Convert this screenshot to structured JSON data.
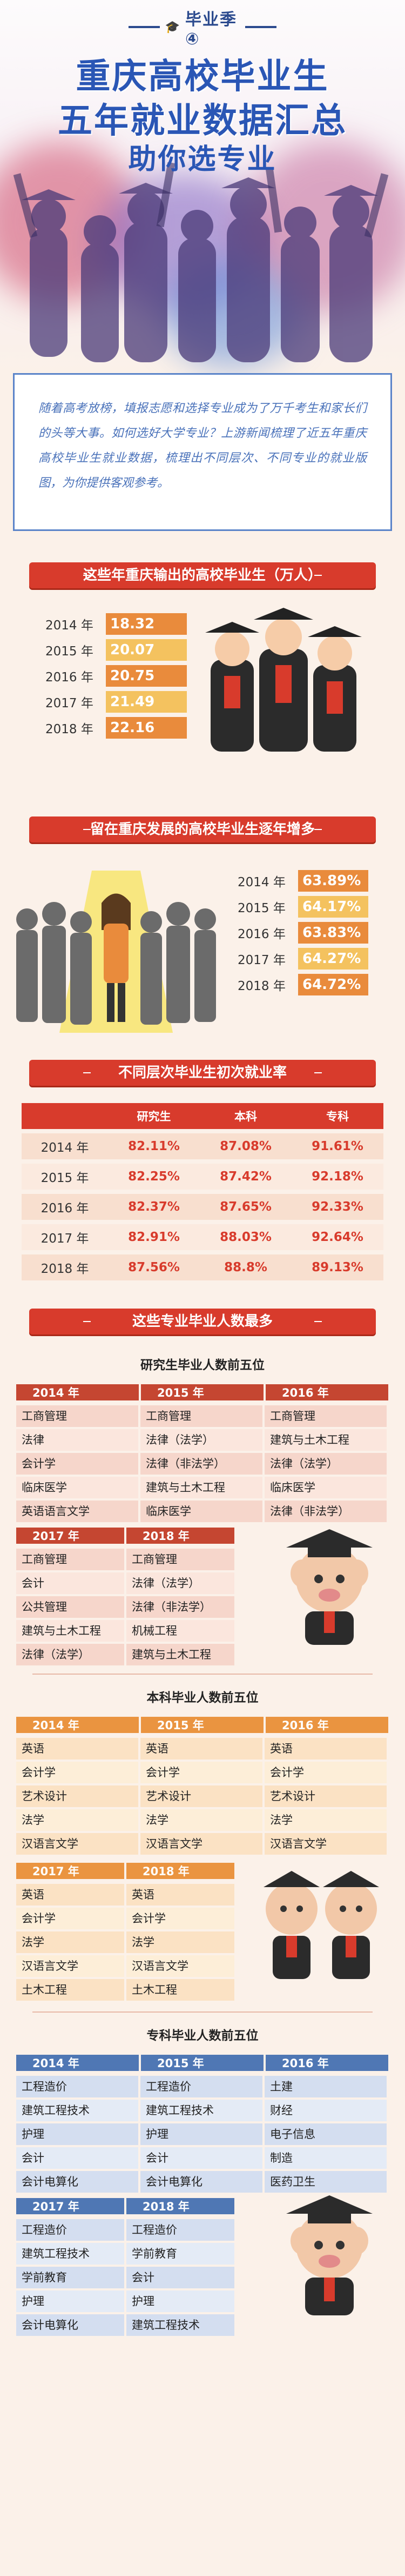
{
  "hero": {
    "season": "毕业季④",
    "title_line1": "重庆高校毕业生",
    "title_line2": "五年就业数据汇总",
    "title_line3": "助你选专业"
  },
  "intro": "随着高考放榜，填报志愿和选择专业成为了万千考生和家长们的头等大事。如何选好大学专业？上游新闻梳理了近五年重庆高校毕业生就业数据，梳理出不同层次、不同专业的就业版图，为你提供客观参考。",
  "section1": {
    "title": "这些年重庆输出的高校毕业生（万人）",
    "rows": [
      {
        "year": "2014 年",
        "value": "18.32"
      },
      {
        "year": "2015 年",
        "value": "20.07"
      },
      {
        "year": "2016 年",
        "value": "20.75"
      },
      {
        "year": "2017 年",
        "value": "21.49"
      },
      {
        "year": "2018 年",
        "value": "22.16"
      }
    ]
  },
  "section2": {
    "title": "留在重庆发展的高校毕业生逐年增多",
    "rows": [
      {
        "year": "2014 年",
        "value": "63.89%"
      },
      {
        "year": "2015 年",
        "value": "64.17%"
      },
      {
        "year": "2016 年",
        "value": "63.83%"
      },
      {
        "year": "2017 年",
        "value": "64.27%"
      },
      {
        "year": "2018 年",
        "value": "64.72%"
      }
    ]
  },
  "section3": {
    "title": "不同层次毕业生初次就业率",
    "headers": [
      "",
      "研究生",
      "本科",
      "专科"
    ],
    "rows": [
      {
        "year": "2014 年",
        "grad": "82.11%",
        "bach": "87.08%",
        "assoc": "91.61%"
      },
      {
        "year": "2015 年",
        "grad": "82.25%",
        "bach": "87.42%",
        "assoc": "92.18%"
      },
      {
        "year": "2016 年",
        "grad": "82.37%",
        "bach": "87.65%",
        "assoc": "92.33%"
      },
      {
        "year": "2017 年",
        "grad": "82.91%",
        "bach": "88.03%",
        "assoc": "92.64%"
      },
      {
        "year": "2018 年",
        "grad": "87.56%",
        "bach": "88.8%",
        "assoc": "89.13%"
      }
    ]
  },
  "section4": {
    "title": "这些专业毕业人数最多",
    "grad": {
      "heading": "研究生毕业人数前五位",
      "cols_a": [
        "2014 年",
        "2015 年",
        "2016 年"
      ],
      "rows_a": [
        [
          "工商管理",
          "工商管理",
          "工商管理"
        ],
        [
          "法律",
          "法律（法学）",
          "建筑与土木工程"
        ],
        [
          "会计学",
          "法律（非法学）",
          "法律（法学）"
        ],
        [
          "临床医学",
          "建筑与土木工程",
          "临床医学"
        ],
        [
          "英语语言文学",
          "临床医学",
          "法律（非法学）"
        ]
      ],
      "cols_b": [
        "2017 年",
        "2018 年"
      ],
      "rows_b": [
        [
          "工商管理",
          "工商管理"
        ],
        [
          "会计",
          "法律（法学）"
        ],
        [
          "公共管理",
          "法律（非法学）"
        ],
        [
          "建筑与土木工程",
          "机械工程"
        ],
        [
          "法律（法学）",
          "建筑与土木工程"
        ]
      ]
    },
    "bach": {
      "heading": "本科毕业人数前五位",
      "cols_a": [
        "2014 年",
        "2015 年",
        "2016 年"
      ],
      "rows_a": [
        [
          "英语",
          "英语",
          "英语"
        ],
        [
          "会计学",
          "会计学",
          "会计学"
        ],
        [
          "艺术设计",
          "艺术设计",
          "艺术设计"
        ],
        [
          "法学",
          "法学",
          "法学"
        ],
        [
          "汉语言文学",
          "汉语言文学",
          "汉语言文学"
        ]
      ],
      "cols_b": [
        "2017 年",
        "2018 年"
      ],
      "rows_b": [
        [
          "英语",
          "英语"
        ],
        [
          "会计学",
          "会计学"
        ],
        [
          "法学",
          "法学"
        ],
        [
          "汉语言文学",
          "汉语言文学"
        ],
        [
          "土木工程",
          "土木工程"
        ]
      ]
    },
    "assoc": {
      "heading": "专科毕业人数前五位",
      "cols_a": [
        "2014 年",
        "2015 年",
        "2016 年"
      ],
      "rows_a": [
        [
          "工程造价",
          "工程造价",
          "土建"
        ],
        [
          "建筑工程技术",
          "建筑工程技术",
          "财经"
        ],
        [
          "护理",
          "护理",
          "电子信息"
        ],
        [
          "会计",
          "会计",
          "制造"
        ],
        [
          "会计电算化",
          "会计电算化",
          "医药卫生"
        ]
      ],
      "cols_b": [
        "2017 年",
        "2018 年"
      ],
      "rows_b": [
        [
          "工程造价",
          "工程造价"
        ],
        [
          "建筑工程技术",
          "学前教育"
        ],
        [
          "学前教育",
          "会计"
        ],
        [
          "护理",
          "护理"
        ],
        [
          "会计电算化",
          "建筑工程技术"
        ]
      ]
    }
  }
}
